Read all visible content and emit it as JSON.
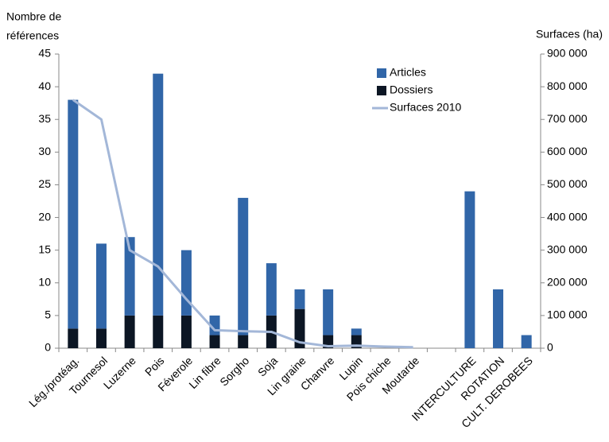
{
  "chart_data": {
    "type": "bar",
    "y_label": [
      "Nombre de",
      "références"
    ],
    "y2_label": "Surfaces (ha)",
    "categories": [
      "Lég./protéag.",
      "Tournesol",
      "Luzerne",
      "Pois",
      "Féverole",
      "Lin fibre",
      "Sorgho",
      "Soja",
      "Lin graine",
      "Chanvre",
      "Lupin",
      "Pois chiche",
      "Moutarde",
      null,
      "INTERCULTURE",
      "ROTATION",
      "CULT. DEROBEES"
    ],
    "series": [
      {
        "name": "Articles",
        "type": "bar",
        "color": "#3166a8",
        "values": [
          35,
          13,
          12,
          37,
          10,
          3,
          21,
          8,
          3,
          7,
          1,
          0,
          0,
          null,
          24,
          9,
          2
        ]
      },
      {
        "name": "Dossiers",
        "type": "bar",
        "color": "#0c1624",
        "values": [
          3,
          3,
          5,
          5,
          5,
          2,
          2,
          5,
          6,
          2,
          2,
          0,
          0,
          null,
          0,
          0,
          0
        ]
      },
      {
        "name": "Surfaces 2010",
        "type": "line",
        "axis": "y2",
        "color": "#a3b7d8",
        "values": [
          760000,
          700000,
          300000,
          250000,
          150000,
          55000,
          52000,
          50000,
          18000,
          6000,
          8000,
          5000,
          3000,
          null,
          null,
          null,
          null
        ]
      }
    ],
    "stacked": true,
    "ylim": [
      0,
      45
    ],
    "yticks": [
      0,
      5,
      10,
      15,
      20,
      25,
      30,
      35,
      40,
      45
    ],
    "y2lim": [
      0,
      900000
    ],
    "y2ticks": [
      0,
      {
        "value": 100000,
        "label": "100 000"
      },
      {
        "value": 200000,
        "label": "200 000"
      },
      {
        "value": 300000,
        "label": "300 000"
      },
      {
        "value": 400000,
        "label": "400 000"
      },
      {
        "value": 500000,
        "label": "500 000"
      },
      {
        "value": 600000,
        "label": "600 000"
      },
      {
        "value": 700000,
        "label": "700 000"
      },
      {
        "value": 800000,
        "label": "800 000"
      },
      {
        "value": 900000,
        "label": "900 000"
      }
    ],
    "legend": "top-right",
    "grid": false
  }
}
